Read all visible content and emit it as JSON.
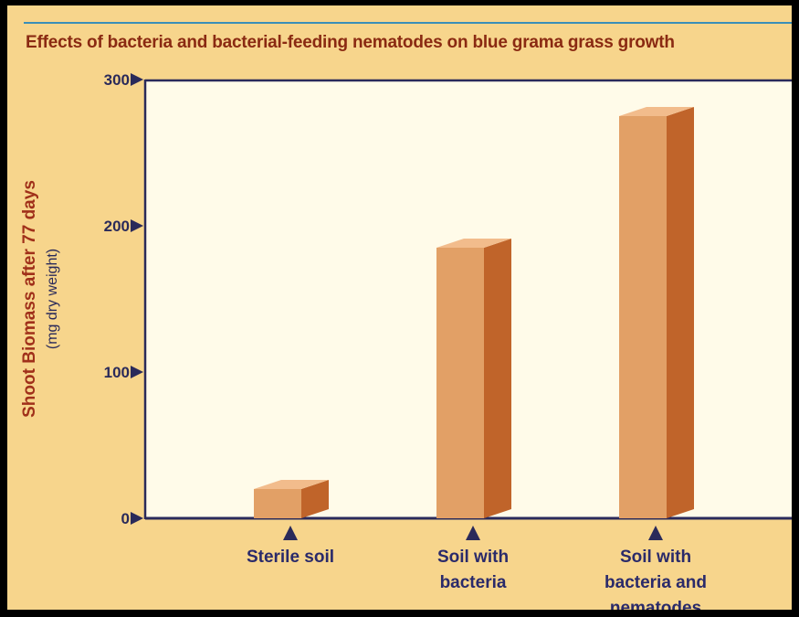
{
  "colors": {
    "background": "#f7d58c",
    "plot_area": "#fffbe9",
    "axis": "#2a2a5a",
    "bar_front": "#e2a066",
    "bar_side": "#c0642a",
    "bar_top": "#f2bc8c",
    "title": "#8a2a12",
    "accent_line": "#3a8fb8"
  },
  "chart_data": {
    "type": "bar",
    "title": "Effects of bacteria and bacterial-feeding nematodes on blue grama grass growth",
    "ylabel": "Shoot Biomass after 77 days",
    "ylabel_sub": "(mg dry weight)",
    "xlabel": "",
    "categories": [
      [
        "Sterile soil"
      ],
      [
        "Soil with",
        "bacteria"
      ],
      [
        "Soil with",
        "bacteria and",
        "nematodes"
      ]
    ],
    "values": [
      20,
      185,
      275
    ],
    "ylim": [
      0,
      300
    ],
    "yticks": [
      "0",
      "100",
      "200",
      "300"
    ],
    "grid": false,
    "legend": "none"
  }
}
